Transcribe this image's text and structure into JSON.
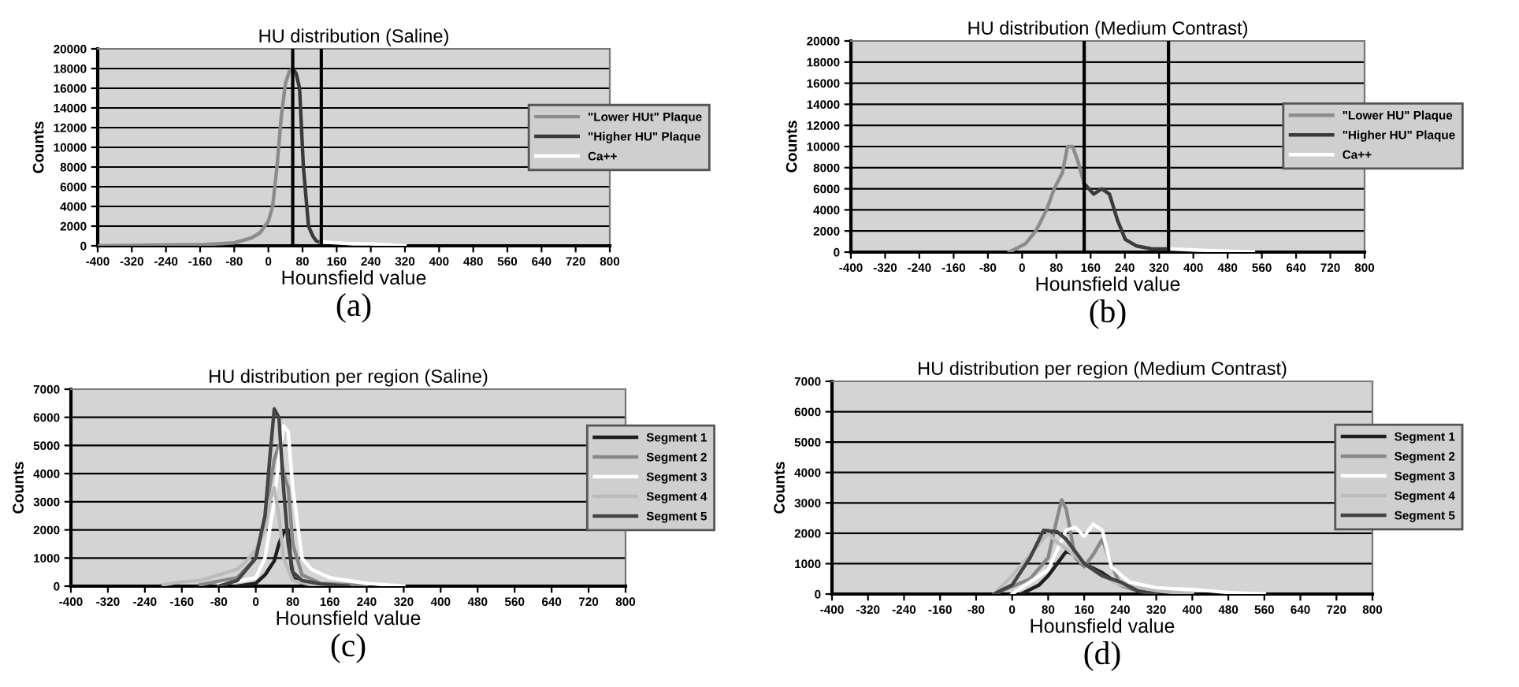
{
  "chart_data": [
    {
      "type": "line",
      "title": "HU distribution (Saline)",
      "xlabel": "Hounsfield value",
      "ylabel": "Counts",
      "annotations": [
        "(a)"
      ],
      "xlim": [
        -400,
        800
      ],
      "xticks": [
        -400,
        -320,
        -240,
        -160,
        -80,
        0,
        80,
        160,
        240,
        320,
        400,
        480,
        560,
        640,
        720,
        800
      ],
      "ylim": [
        0,
        20000
      ],
      "yticks": [
        0,
        2000,
        4000,
        6000,
        8000,
        10000,
        12000,
        14000,
        16000,
        18000,
        20000
      ],
      "grid": "y",
      "legend": "right",
      "marker": "none",
      "line_style": "solid",
      "ref_lines": [
        {
          "axis": "x",
          "value": 57,
          "color": "#000000"
        },
        {
          "axis": "x",
          "value": 124,
          "color": "#000000"
        }
      ],
      "series": [
        {
          "name": "\"Lower HUt\" Plaque",
          "color": "#8c8c8c",
          "x": [
            -400,
            -200,
            -160,
            -120,
            -80,
            -40,
            -20,
            0,
            10,
            20,
            30,
            40,
            50,
            57
          ],
          "values": [
            0,
            100,
            100,
            200,
            300,
            800,
            1300,
            2500,
            4000,
            8000,
            13000,
            16500,
            17800,
            18000
          ]
        },
        {
          "name": "\"Higher HU\" Plaque",
          "color": "#3a3a3a",
          "x": [
            57,
            65,
            73,
            82,
            94,
            104,
            112,
            124
          ],
          "values": [
            18000,
            17500,
            16000,
            8000,
            2000,
            1000,
            500,
            300
          ]
        },
        {
          "name": "Ca++",
          "color": "#ffffff",
          "x": [
            124,
            160,
            200,
            240,
            280,
            320
          ],
          "values": [
            400,
            300,
            200,
            200,
            100,
            0
          ]
        }
      ]
    },
    {
      "type": "line",
      "title": "HU distribution (Medium Contrast)",
      "xlabel": "Hounsfield value",
      "ylabel": "Counts",
      "annotations": [
        "(b)"
      ],
      "xlim": [
        -400,
        800
      ],
      "xticks": [
        -400,
        -320,
        -240,
        -160,
        -80,
        0,
        80,
        160,
        240,
        320,
        400,
        480,
        560,
        640,
        720,
        800
      ],
      "ylim": [
        0,
        20000
      ],
      "yticks": [
        0,
        2000,
        4000,
        6000,
        8000,
        10000,
        12000,
        14000,
        16000,
        18000,
        20000
      ],
      "grid": "y",
      "legend": "right",
      "marker": "none",
      "line_style": "solid",
      "ref_lines": [
        {
          "axis": "x",
          "value": 145,
          "color": "#000000"
        },
        {
          "axis": "x",
          "value": 342,
          "color": "#000000"
        }
      ],
      "series": [
        {
          "name": "\"Lower HU\" Plaque",
          "color": "#8c8c8c",
          "x": [
            -30,
            8,
            32,
            57,
            75,
            94,
            106,
            118,
            131,
            145
          ],
          "values": [
            0,
            800,
            2000,
            4000,
            6000,
            7500,
            10000,
            10000,
            8500,
            6500
          ]
        },
        {
          "name": "\"Higher HU\" Plaque",
          "color": "#3a3a3a",
          "x": [
            145,
            167,
            186,
            204,
            223,
            241,
            266,
            303,
            342
          ],
          "values": [
            6500,
            5500,
            6000,
            5500,
            3000,
            1200,
            600,
            300,
            300
          ]
        },
        {
          "name": "Ca++",
          "color": "#ffffff",
          "x": [
            342,
            400,
            480,
            540
          ],
          "values": [
            300,
            200,
            100,
            0
          ]
        }
      ]
    },
    {
      "type": "line",
      "title": "HU distribution per region (Saline)",
      "xlabel": "Hounsfield value",
      "ylabel": "Counts",
      "annotations": [
        "(c)"
      ],
      "xlim": [
        -400,
        800
      ],
      "xticks": [
        -400,
        -320,
        -240,
        -160,
        -80,
        0,
        80,
        160,
        240,
        320,
        400,
        480,
        560,
        640,
        720,
        800
      ],
      "ylim": [
        0,
        7000
      ],
      "yticks": [
        0,
        1000,
        2000,
        3000,
        4000,
        5000,
        6000,
        7000
      ],
      "grid": "y",
      "legend": "right",
      "marker": "none",
      "line_style": "solid",
      "series": [
        {
          "name": "Segment 1",
          "color": "#1e1e1e",
          "x": [
            -40,
            0,
            20,
            40,
            50,
            60,
            70,
            75,
            80,
            100,
            140,
            200
          ],
          "values": [
            0,
            100,
            400,
            900,
            1500,
            1900,
            2000,
            1000,
            300,
            100,
            50,
            0
          ]
        },
        {
          "name": "Segment 2",
          "color": "#888888",
          "x": [
            -120,
            -40,
            0,
            20,
            40,
            50,
            60,
            70,
            80,
            100,
            140,
            200,
            240
          ],
          "values": [
            50,
            300,
            1000,
            2500,
            4500,
            5000,
            4000,
            3500,
            1500,
            400,
            100,
            50,
            0
          ]
        },
        {
          "name": "Segment 3",
          "color": "#ffffff",
          "x": [
            -80,
            0,
            20,
            40,
            50,
            60,
            70,
            80,
            100,
            120,
            160,
            240,
            320
          ],
          "values": [
            50,
            300,
            1000,
            3000,
            4500,
            5700,
            5500,
            3500,
            1000,
            600,
            300,
            100,
            0
          ]
        },
        {
          "name": "Segment 4",
          "color": "#bbbbbb",
          "x": [
            -200,
            -160,
            -120,
            -80,
            -40,
            -20,
            0,
            20,
            30,
            40,
            50,
            60,
            80,
            120,
            160
          ],
          "values": [
            50,
            150,
            200,
            400,
            600,
            900,
            1300,
            2000,
            3000,
            3500,
            2500,
            1000,
            200,
            50,
            0
          ]
        },
        {
          "name": "Segment 5",
          "color": "#444444",
          "x": [
            -80,
            -40,
            -20,
            0,
            20,
            30,
            40,
            50,
            60,
            70,
            80,
            100,
            140,
            200
          ],
          "values": [
            0,
            200,
            600,
            1000,
            2500,
            4500,
            6300,
            6000,
            3500,
            1500,
            500,
            200,
            80,
            0
          ]
        }
      ]
    },
    {
      "type": "line",
      "title": "HU distribution per region (Medium Contrast)",
      "xlabel": "Hounsfield value",
      "ylabel": "Counts",
      "annotations": [
        "(d)"
      ],
      "xlim": [
        -400,
        800
      ],
      "xticks": [
        -400,
        -320,
        -240,
        -160,
        -80,
        0,
        80,
        160,
        240,
        320,
        400,
        480,
        560,
        640,
        720,
        800
      ],
      "ylim": [
        0,
        7000
      ],
      "yticks": [
        0,
        1000,
        2000,
        3000,
        4000,
        5000,
        6000,
        7000
      ],
      "grid": "y",
      "legend": "right",
      "marker": "none",
      "line_style": "solid",
      "series": [
        {
          "name": "Segment 1",
          "color": "#1e1e1e",
          "x": [
            20,
            60,
            80,
            100,
            120,
            140,
            160,
            200,
            240,
            280,
            320
          ],
          "values": [
            0,
            300,
            600,
            1000,
            1400,
            1300,
            1000,
            700,
            300,
            100,
            0
          ]
        },
        {
          "name": "Segment 2",
          "color": "#888888",
          "x": [
            -40,
            40,
            80,
            100,
            110,
            120,
            140,
            160,
            180,
            200,
            220,
            240,
            280,
            320
          ],
          "values": [
            0,
            500,
            1200,
            2500,
            3100,
            2800,
            1200,
            900,
            1300,
            1800,
            1000,
            300,
            100,
            0
          ]
        },
        {
          "name": "Segment 3",
          "color": "#ffffff",
          "x": [
            0,
            40,
            80,
            120,
            140,
            160,
            180,
            200,
            220,
            260,
            320,
            400,
            480,
            560
          ],
          "values": [
            0,
            400,
            800,
            2100,
            2200,
            1900,
            2300,
            2100,
            900,
            400,
            200,
            150,
            50,
            0
          ]
        },
        {
          "name": "Segment 4",
          "color": "#bbbbbb",
          "x": [
            -40,
            0,
            40,
            80,
            100,
            120,
            160,
            200,
            240,
            320,
            400
          ],
          "values": [
            0,
            600,
            1300,
            2000,
            1700,
            1500,
            1000,
            600,
            300,
            100,
            0
          ]
        },
        {
          "name": "Segment 5",
          "color": "#444444",
          "x": [
            -40,
            0,
            40,
            70,
            100,
            120,
            160,
            200,
            240,
            280,
            320
          ],
          "values": [
            0,
            300,
            1200,
            2100,
            2050,
            1800,
            1000,
            600,
            400,
            100,
            0
          ]
        }
      ]
    }
  ]
}
